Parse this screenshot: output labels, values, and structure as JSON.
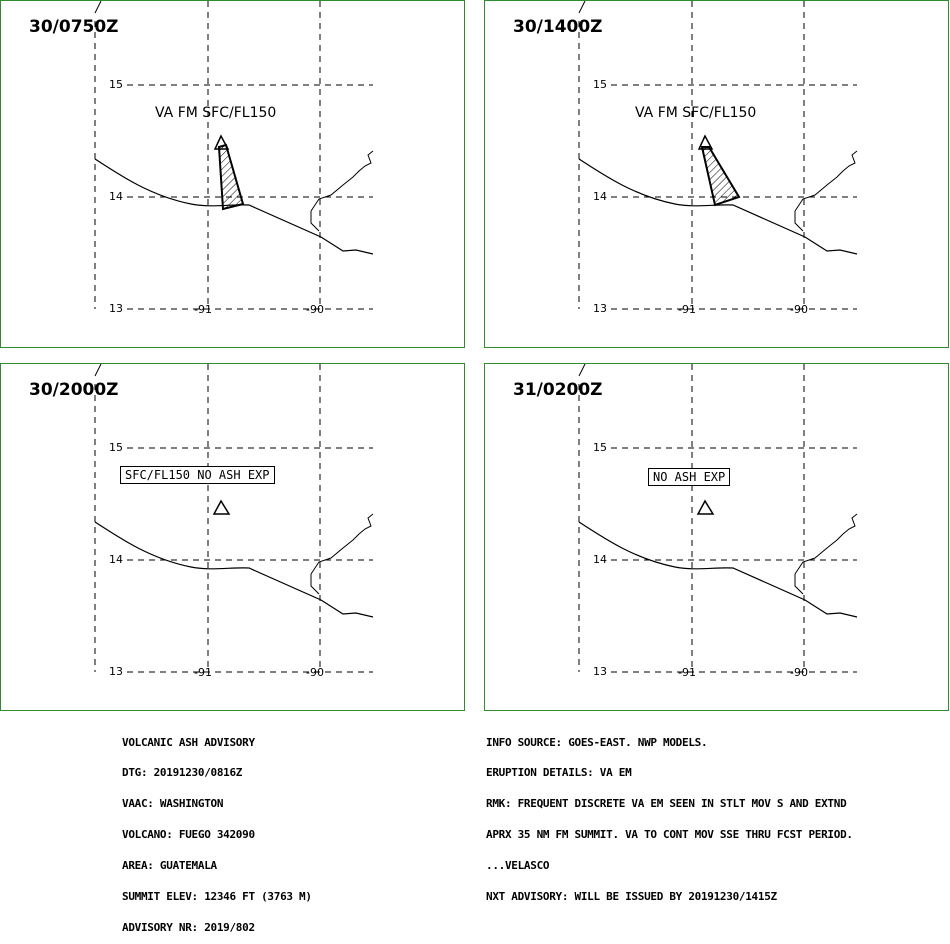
{
  "panels": [
    {
      "time": "30/0750Z",
      "label": "VA FM SFC/FL150",
      "label_style": "plain",
      "ash_area": true
    },
    {
      "time": "30/1400Z",
      "label": "VA FM SFC/FL150",
      "label_style": "plain",
      "ash_area": true
    },
    {
      "time": "30/2000Z",
      "label": "SFC/FL150 NO ASH EXP",
      "label_style": "boxed",
      "ash_area": false
    },
    {
      "time": "31/0200Z",
      "label": "NO ASH EXP",
      "label_style": "boxed",
      "ash_area": false
    }
  ],
  "axis": {
    "lat_labels": [
      "15",
      "14",
      "13"
    ],
    "lon_labels": [
      "-91",
      "-90"
    ]
  },
  "advisory_left": [
    "VOLCANIC ASH ADVISORY",
    "DTG: 20191230/0816Z",
    "VAAC: WASHINGTON",
    "VOLCANO: FUEGO 342090",
    "AREA: GUATEMALA",
    "SUMMIT ELEV: 12346 FT (3763 M)",
    "ADVISORY NR: 2019/802"
  ],
  "advisory_right": [
    "INFO SOURCE: GOES-EAST. NWP MODELS.",
    "ERUPTION DETAILS: VA EM",
    "RMK: FREQUENT DISCRETE VA EM SEEN IN STLT MOV S AND EXTND",
    "APRX 35 NM FM SUMMIT. VA TO CONT MOV SSE THRU FCST PERIOD.",
    "...VELASCO",
    "NXT ADVISORY: WILL BE ISSUED BY 20191230/1415Z"
  ],
  "colors": {
    "border": "#2e8b2e",
    "ink": "#000000"
  }
}
